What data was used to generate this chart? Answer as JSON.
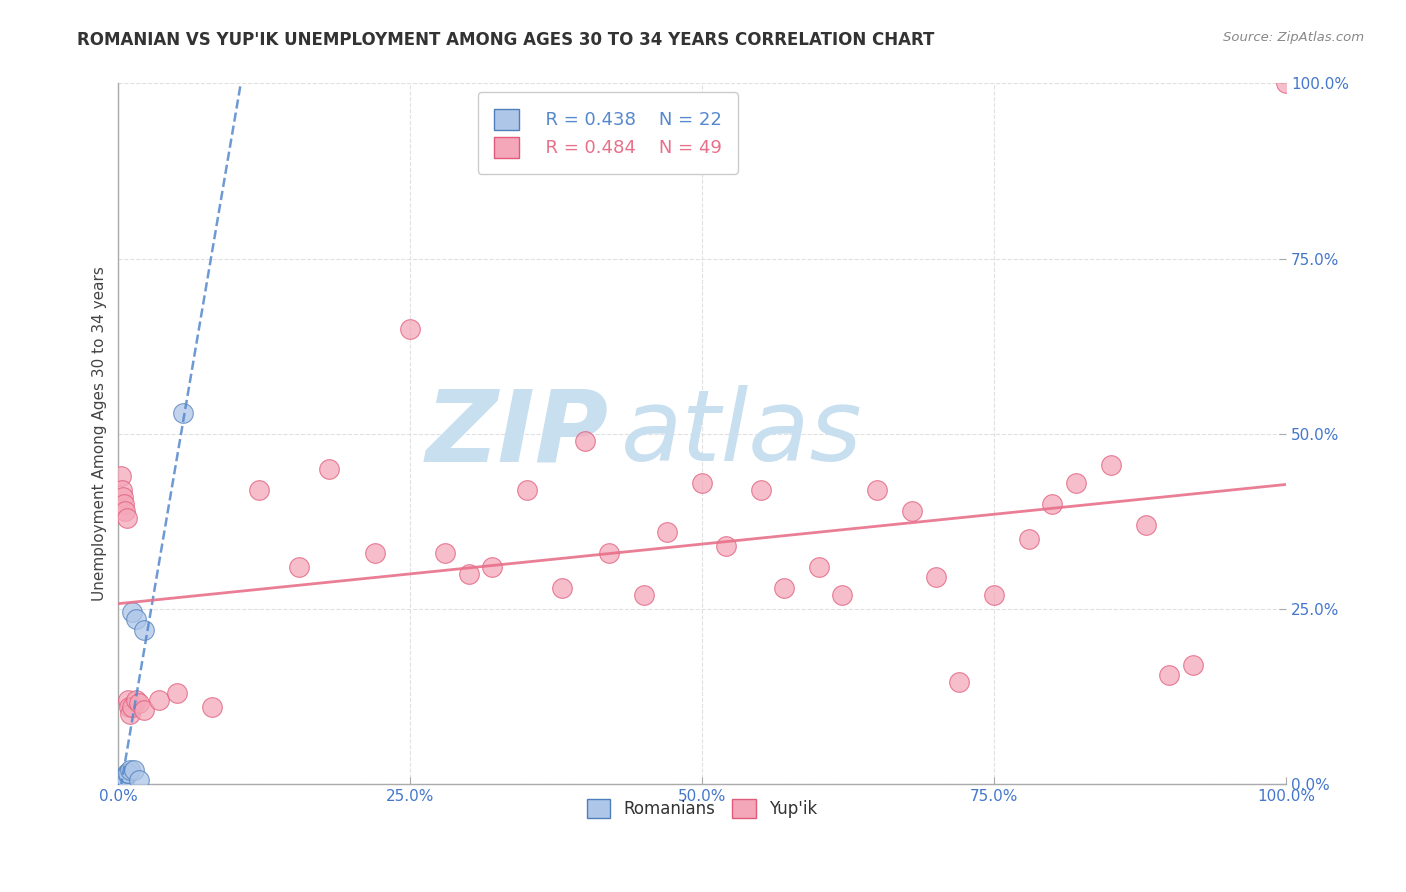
{
  "title": "ROMANIAN VS YUP'IK UNEMPLOYMENT AMONG AGES 30 TO 34 YEARS CORRELATION CHART",
  "source": "Source: ZipAtlas.com",
  "ylabel": "Unemployment Among Ages 30 to 34 years",
  "xlim": [
    0,
    1.0
  ],
  "ylim": [
    0,
    1.0
  ],
  "xticks": [
    0.0,
    0.25,
    0.5,
    0.75,
    1.0
  ],
  "yticks": [
    0.0,
    0.25,
    0.5,
    0.75,
    1.0
  ],
  "xticklabels": [
    "0.0%",
    "25.0%",
    "50.0%",
    "75.0%",
    "100.0%"
  ],
  "yticklabels": [
    "0.0%",
    "25.0%",
    "50.0%",
    "75.0%",
    "100.0%"
  ],
  "romanian_fill": "#aec6e8",
  "romanian_edge": "#4f7fba",
  "yupik_fill": "#f4a7b9",
  "yupik_edge": "#e05a7a",
  "romanian_trendline_color": "#5588cc",
  "yupik_trendline_color": "#e8708a",
  "legend_r_romanian": "R = 0.438",
  "legend_n_romanian": "N = 22",
  "legend_r_yupik": "R = 0.484",
  "legend_n_yupik": "N = 49",
  "romanian_x": [
    0.0,
    0.0,
    0.0,
    0.001,
    0.001,
    0.002,
    0.002,
    0.003,
    0.003,
    0.004,
    0.005,
    0.005,
    0.006,
    0.007,
    0.008,
    0.01,
    0.012,
    0.013,
    0.015,
    0.018,
    0.022,
    0.055
  ],
  "romanian_y": [
    0.0,
    0.0,
    0.0,
    0.0,
    0.0,
    0.0,
    0.0,
    0.0,
    0.005,
    0.005,
    0.005,
    0.01,
    0.01,
    0.015,
    0.015,
    0.02,
    0.245,
    0.02,
    0.235,
    0.005,
    0.22,
    0.53
  ],
  "yupik_x": [
    0.002,
    0.003,
    0.004,
    0.005,
    0.006,
    0.007,
    0.008,
    0.009,
    0.01,
    0.012,
    0.015,
    0.018,
    0.022,
    0.035,
    0.05,
    0.08,
    0.12,
    0.155,
    0.18,
    0.22,
    0.25,
    0.28,
    0.3,
    0.32,
    0.35,
    0.38,
    0.4,
    0.42,
    0.45,
    0.47,
    0.5,
    0.52,
    0.55,
    0.57,
    0.6,
    0.62,
    0.65,
    0.68,
    0.7,
    0.72,
    0.75,
    0.78,
    0.8,
    0.82,
    0.85,
    0.88,
    0.9,
    0.92,
    1.0
  ],
  "yupik_y": [
    0.44,
    0.42,
    0.41,
    0.4,
    0.39,
    0.38,
    0.12,
    0.11,
    0.1,
    0.11,
    0.12,
    0.115,
    0.105,
    0.12,
    0.13,
    0.11,
    0.42,
    0.31,
    0.45,
    0.33,
    0.65,
    0.33,
    0.3,
    0.31,
    0.42,
    0.28,
    0.49,
    0.33,
    0.27,
    0.36,
    0.43,
    0.34,
    0.42,
    0.28,
    0.31,
    0.27,
    0.42,
    0.39,
    0.295,
    0.145,
    0.27,
    0.35,
    0.4,
    0.43,
    0.455,
    0.37,
    0.155,
    0.17,
    1.0
  ],
  "watermark_zip": "ZIP",
  "watermark_atlas": "atlas",
  "watermark_color_zip": "#c8dff0",
  "watermark_color_atlas": "#c8dff0",
  "background_color": "#ffffff",
  "grid_color": "#e0e0e0"
}
